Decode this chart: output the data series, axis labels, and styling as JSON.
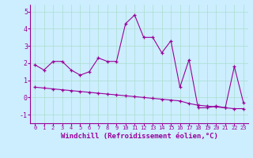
{
  "xlabel": "Windchill (Refroidissement éolien,°C)",
  "background_color": "#cceeff",
  "line1_x": [
    0,
    1,
    2,
    3,
    4,
    5,
    6,
    7,
    8,
    9,
    10,
    11,
    12,
    13,
    14,
    15,
    16,
    17,
    18,
    19,
    20,
    21,
    22,
    23
  ],
  "line1_y": [
    1.9,
    1.6,
    2.1,
    2.1,
    1.6,
    1.3,
    1.5,
    2.3,
    2.1,
    2.1,
    4.3,
    4.8,
    3.5,
    3.5,
    2.6,
    3.3,
    0.6,
    2.2,
    -0.6,
    -0.6,
    -0.5,
    -0.6,
    1.8,
    -0.3
  ],
  "line2_x": [
    0,
    1,
    2,
    3,
    4,
    5,
    6,
    7,
    8,
    9,
    10,
    11,
    12,
    13,
    14,
    15,
    16,
    17,
    18,
    19,
    20,
    21,
    22,
    23
  ],
  "line2_y": [
    0.6,
    0.55,
    0.5,
    0.45,
    0.4,
    0.35,
    0.3,
    0.25,
    0.2,
    0.15,
    0.1,
    0.05,
    0.0,
    -0.05,
    -0.1,
    -0.15,
    -0.2,
    -0.35,
    -0.45,
    -0.5,
    -0.55,
    -0.6,
    -0.65,
    -0.65
  ],
  "line_color": "#990099",
  "ylim": [
    -1.5,
    5.4
  ],
  "xlim": [
    -0.5,
    23.5
  ],
  "yticks": [
    -1,
    0,
    1,
    2,
    3,
    4,
    5
  ],
  "xticks": [
    0,
    1,
    2,
    3,
    4,
    5,
    6,
    7,
    8,
    9,
    10,
    11,
    12,
    13,
    14,
    15,
    16,
    17,
    18,
    19,
    20,
    21,
    22,
    23
  ],
  "grid_color": "#aaddcc",
  "xlabel_fontsize": 6.5,
  "tick_fontsize": 6.0,
  "marker_size": 3.5
}
